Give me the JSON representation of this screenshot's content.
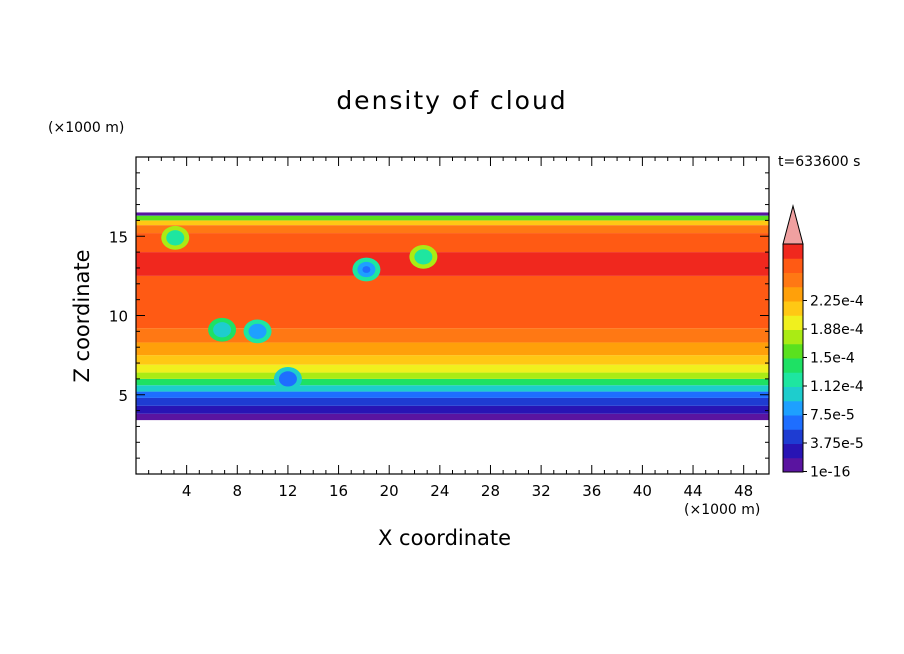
{
  "chart_data": {
    "type": "heatmap",
    "title": "density of cloud",
    "xlabel": "X coordinate",
    "ylabel": "Z coordinate",
    "x_units": "(×1000 m)",
    "y_units": "(×1000 m)",
    "time_label": "t=633600 s",
    "xlim": [
      0,
      50
    ],
    "ylim": [
      0,
      20
    ],
    "x_ticks": [
      4,
      8,
      12,
      16,
      20,
      24,
      28,
      32,
      36,
      40,
      44,
      48
    ],
    "y_ticks": [
      5,
      10,
      15
    ],
    "cloud_bottom": 3.4,
    "cloud_top": 16.5,
    "colorbar": {
      "labels": [
        "2.25e-4",
        "1.88e-4",
        "1.5e-4",
        "1.12e-4",
        "7.5e-5",
        "3.75e-5",
        "1e-16"
      ],
      "colors": [
        "#5a14a0",
        "#2814b4",
        "#1e3cd2",
        "#1e6eff",
        "#1ea0ff",
        "#1ecdcd",
        "#1ee6a0",
        "#1ee164",
        "#5ae11e",
        "#aaeb14",
        "#f0f01e",
        "#ffc814",
        "#ffa00a",
        "#ff7814",
        "#ff5a14",
        "#f0281e"
      ],
      "overflow_color": "#f0a0a0"
    },
    "profile": [
      {
        "z": 3.4,
        "level": 0
      },
      {
        "z": 3.8,
        "level": 1
      },
      {
        "z": 4.3,
        "level": 2
      },
      {
        "z": 4.8,
        "level": 3
      },
      {
        "z": 5.2,
        "level": 5
      },
      {
        "z": 5.6,
        "level": 7
      },
      {
        "z": 6.0,
        "level": 9
      },
      {
        "z": 6.4,
        "level": 10
      },
      {
        "z": 6.9,
        "level": 11
      },
      {
        "z": 7.5,
        "level": 12
      },
      {
        "z": 8.3,
        "level": 13
      },
      {
        "z": 9.2,
        "level": 14
      },
      {
        "z": 12.5,
        "level": 15
      },
      {
        "z": 14.0,
        "level": 14
      },
      {
        "z": 15.2,
        "level": 13
      },
      {
        "z": 15.7,
        "level": 11
      },
      {
        "z": 16.0,
        "level": 8
      },
      {
        "z": 16.3,
        "level": 4
      },
      {
        "z": 16.5,
        "level": 1
      }
    ],
    "vortices": [
      {
        "x": 18.2,
        "z": 12.9,
        "levels": [
          6,
          4,
          3
        ]
      },
      {
        "x": 6.8,
        "z": 9.1,
        "levels": [
          7,
          5
        ]
      },
      {
        "x": 9.6,
        "z": 9.0,
        "levels": [
          6,
          4
        ]
      },
      {
        "x": 22.7,
        "z": 13.7,
        "levels": [
          9,
          6
        ]
      },
      {
        "x": 12.0,
        "z": 6.0,
        "levels": [
          5,
          3
        ]
      },
      {
        "x": 3.1,
        "z": 14.9,
        "levels": [
          9,
          6
        ]
      }
    ]
  }
}
